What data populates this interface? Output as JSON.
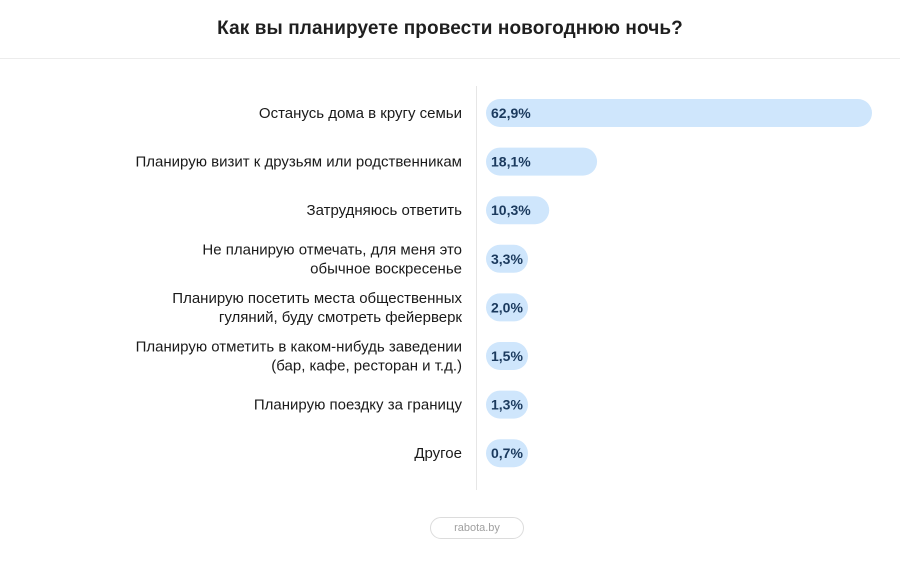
{
  "header": {
    "title": "Как вы планируете провести новогоднюю ночь?"
  },
  "footer": {
    "source": "rabota.by"
  },
  "colors": {
    "bar": "#cfe6fc",
    "value_text": "#1b3a5e",
    "label_text": "#1a1a1a"
  },
  "chart_data": {
    "type": "bar",
    "orientation": "horizontal",
    "title": "Как вы планируете провести новогоднюю ночь?",
    "categories": [
      [
        "Останусь дома в кругу семьи"
      ],
      [
        "Планирую визит к друзьям или родственникам"
      ],
      [
        "Затрудняюсь ответить"
      ],
      [
        "Не планирую отмечать, для меня это",
        "обычное воскресенье"
      ],
      [
        "Планирую посетить места общественных",
        "гуляний, буду смотреть фейерверк"
      ],
      [
        "Планирую отметить в каком-нибудь заведении",
        "(бар, кафе, ресторан и т.д.)"
      ],
      [
        "Планирую поездку за границу"
      ],
      [
        "Другое"
      ]
    ],
    "values": [
      62.9,
      18.1,
      10.3,
      3.3,
      2.0,
      1.5,
      1.3,
      0.7
    ],
    "value_labels": [
      "62,9%",
      "18,1%",
      "10,3%",
      "3,3%",
      "2,0%",
      "1,5%",
      "1,3%",
      "0,7%"
    ],
    "unit": "%",
    "grid": false,
    "legend": "none"
  }
}
